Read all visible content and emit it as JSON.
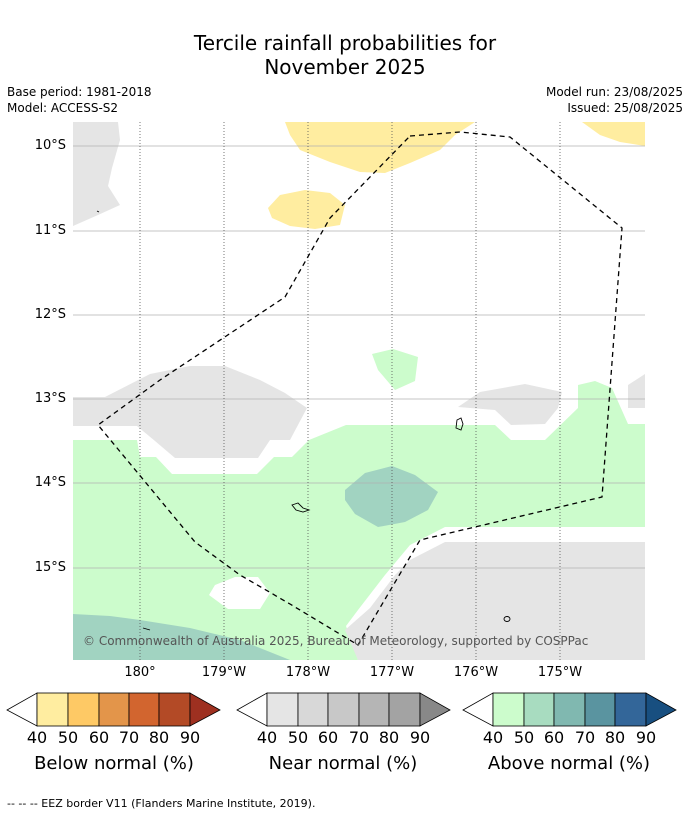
{
  "title_line1": "Tercile rainfall probabilities for",
  "title_line2": "November 2025",
  "base_period": "Base period: 1981-2018",
  "model": "Model: ACCESS-S2",
  "model_run": "Model run: 23/08/2025",
  "issued": "Issued: 25/08/2025",
  "lat_labels": [
    "10°S",
    "11°S",
    "12°S",
    "13°S",
    "14°S",
    "15°S"
  ],
  "lon_labels": [
    "180°",
    "179°W",
    "178°W",
    "177°W",
    "176°W",
    "175°W"
  ],
  "copyright": "© Commonwealth of Australia 2025, Bureau of Meteorology, supported by COSPPac",
  "legends": [
    {
      "title": "Below normal (%)",
      "ticks": [
        "40",
        "50",
        "60",
        "70",
        "80",
        "90"
      ],
      "colors": [
        "#ffeda0",
        "#fec965",
        "#e3954a",
        "#d2652f",
        "#b34a26",
        "#9e3020"
      ]
    },
    {
      "title": "Near normal (%)",
      "ticks": [
        "40",
        "50",
        "60",
        "70",
        "80",
        "90"
      ],
      "colors": [
        "#e5e5e5",
        "#d8d8d8",
        "#c8c8c8",
        "#b5b5b5",
        "#a3a3a3",
        "#888888"
      ]
    },
    {
      "title": "Above normal (%)",
      "ticks": [
        "40",
        "50",
        "60",
        "70",
        "80",
        "90"
      ],
      "colors": [
        "#ccfccc",
        "#a8dcc0",
        "#80b8b0",
        "#5a94a0",
        "#336699",
        "#184f80"
      ]
    }
  ],
  "footnote": "--  --  -- EEZ border V11 (Flanders Marine Institute, 2019)."
}
